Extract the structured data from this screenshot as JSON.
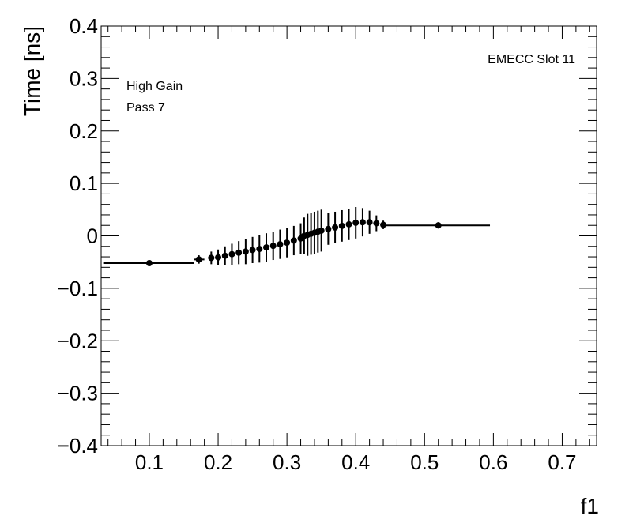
{
  "chart_data": {
    "type": "scatter",
    "title": "",
    "xlabel": "f1",
    "ylabel": "Time [ns]",
    "xlim": [
      0.03,
      0.75
    ],
    "ylim": [
      -0.4,
      0.4
    ],
    "x_ticks": [
      "0.1",
      "0.2",
      "0.3",
      "0.4",
      "0.5",
      "0.6",
      "0.7"
    ],
    "x_tick_values": [
      0.1,
      0.2,
      0.3,
      0.4,
      0.5,
      0.6,
      0.7
    ],
    "y_ticks": [
      "−0.4",
      "−0.3",
      "−0.2",
      "−0.1",
      "0",
      "0.1",
      "0.2",
      "0.3",
      "0.4"
    ],
    "y_tick_values": [
      -0.4,
      -0.3,
      -0.2,
      -0.1,
      0,
      0.1,
      0.2,
      0.3,
      0.4
    ],
    "grid": false,
    "annotations": {
      "top_right": "EMECC Slot 11",
      "line1": "High Gain",
      "line2": "Pass 7"
    },
    "points": [
      {
        "x": 0.1,
        "y": -0.052,
        "err": 0.0,
        "xlo": 0.033,
        "xhi": 0.165
      },
      {
        "x": 0.172,
        "y": -0.045,
        "err": 0.008,
        "xlo": 0.165,
        "xhi": 0.18
      },
      {
        "x": 0.19,
        "y": -0.042,
        "err": 0.012
      },
      {
        "x": 0.2,
        "y": -0.041,
        "err": 0.015
      },
      {
        "x": 0.21,
        "y": -0.038,
        "err": 0.018
      },
      {
        "x": 0.22,
        "y": -0.035,
        "err": 0.02
      },
      {
        "x": 0.23,
        "y": -0.032,
        "err": 0.022
      },
      {
        "x": 0.24,
        "y": -0.03,
        "err": 0.024
      },
      {
        "x": 0.25,
        "y": -0.027,
        "err": 0.025
      },
      {
        "x": 0.26,
        "y": -0.025,
        "err": 0.026
      },
      {
        "x": 0.27,
        "y": -0.022,
        "err": 0.027
      },
      {
        "x": 0.28,
        "y": -0.019,
        "err": 0.027
      },
      {
        "x": 0.29,
        "y": -0.016,
        "err": 0.028
      },
      {
        "x": 0.3,
        "y": -0.013,
        "err": 0.028
      },
      {
        "x": 0.31,
        "y": -0.009,
        "err": 0.028
      },
      {
        "x": 0.32,
        "y": -0.005,
        "err": 0.029
      },
      {
        "x": 0.325,
        "y": 0.0,
        "err": 0.035
      },
      {
        "x": 0.33,
        "y": 0.002,
        "err": 0.04
      },
      {
        "x": 0.335,
        "y": 0.004,
        "err": 0.04
      },
      {
        "x": 0.34,
        "y": 0.006,
        "err": 0.04
      },
      {
        "x": 0.345,
        "y": 0.008,
        "err": 0.04
      },
      {
        "x": 0.35,
        "y": 0.01,
        "err": 0.04
      },
      {
        "x": 0.36,
        "y": 0.013,
        "err": 0.03
      },
      {
        "x": 0.37,
        "y": 0.016,
        "err": 0.03
      },
      {
        "x": 0.38,
        "y": 0.019,
        "err": 0.03
      },
      {
        "x": 0.39,
        "y": 0.022,
        "err": 0.03
      },
      {
        "x": 0.4,
        "y": 0.025,
        "err": 0.03
      },
      {
        "x": 0.41,
        "y": 0.026,
        "err": 0.027
      },
      {
        "x": 0.42,
        "y": 0.026,
        "err": 0.022
      },
      {
        "x": 0.43,
        "y": 0.024,
        "err": 0.015
      },
      {
        "x": 0.44,
        "y": 0.021,
        "err": 0.008
      },
      {
        "x": 0.52,
        "y": 0.02,
        "err": 0.006,
        "xlo": 0.44,
        "xhi": 0.595
      }
    ]
  }
}
